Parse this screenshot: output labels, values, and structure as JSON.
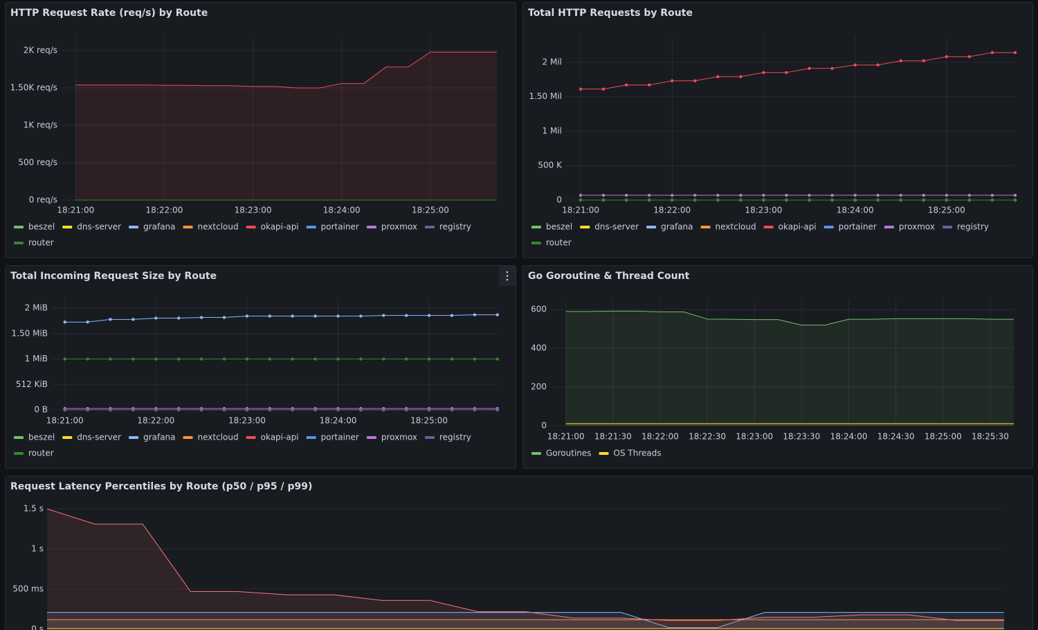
{
  "chart_data": [
    {
      "type": "line",
      "title": "HTTP Request Rate (req/s) by Route",
      "area": true,
      "points": false,
      "x": [
        "18:21:00",
        "18:21:15",
        "18:21:30",
        "18:21:45",
        "18:22:00",
        "18:22:15",
        "18:22:30",
        "18:22:45",
        "18:23:00",
        "18:23:15",
        "18:23:30",
        "18:23:45",
        "18:24:00",
        "18:24:15",
        "18:24:30",
        "18:24:45",
        "18:25:00",
        "18:25:15",
        "18:25:30",
        "18:25:45"
      ],
      "xlim": [
        "18:20:50",
        "18:25:45"
      ],
      "xticks": [
        "18:21:00",
        "18:22:00",
        "18:23:00",
        "18:24:00",
        "18:25:00"
      ],
      "ylim": [
        0,
        2195
      ],
      "yticks": [
        {
          "value": 0,
          "label": "0 req/s"
        },
        {
          "value": 500,
          "label": "500 req/s"
        },
        {
          "value": 1000,
          "label": "1K req/s"
        },
        {
          "value": 1500,
          "label": "1.50K req/s"
        },
        {
          "value": 2000,
          "label": "2K req/s"
        }
      ],
      "series": [
        {
          "name": "beszel",
          "color": "#73bf69",
          "values": [
            0,
            0,
            0,
            0,
            0,
            0,
            0,
            0,
            0,
            0,
            0,
            0,
            0,
            0,
            0,
            0,
            0,
            0,
            0,
            0
          ]
        },
        {
          "name": "dns-server",
          "color": "#fade2a",
          "values": [
            0,
            0,
            0,
            0,
            0,
            0,
            0,
            0,
            0,
            0,
            0,
            0,
            0,
            0,
            0,
            0,
            0,
            0,
            0,
            0
          ]
        },
        {
          "name": "grafana",
          "color": "#8ab8ff",
          "values": [
            0,
            0,
            0,
            0,
            0,
            0,
            0,
            0,
            0,
            0,
            0,
            0,
            0,
            0,
            0,
            0,
            0,
            0,
            0,
            0
          ]
        },
        {
          "name": "nextcloud",
          "color": "#ff9830",
          "values": [
            0,
            0,
            0,
            0,
            0,
            0,
            0,
            0,
            0,
            0,
            0,
            0,
            0,
            0,
            0,
            0,
            0,
            0,
            0,
            0
          ]
        },
        {
          "name": "okapi-api",
          "color": "#f2495c",
          "values": [
            1540,
            1540,
            1540,
            1540,
            1535,
            1535,
            1530,
            1530,
            1520,
            1520,
            1500,
            1500,
            1560,
            1560,
            1780,
            1780,
            1980,
            1980,
            1980,
            1980
          ]
        },
        {
          "name": "portainer",
          "color": "#5794f2",
          "values": [
            0,
            0,
            0,
            0,
            0,
            0,
            0,
            0,
            0,
            0,
            0,
            0,
            0,
            0,
            0,
            0,
            0,
            0,
            0,
            0
          ]
        },
        {
          "name": "proxmox",
          "color": "#b877d9",
          "values": [
            0,
            0,
            0,
            0,
            0,
            0,
            0,
            0,
            0,
            0,
            0,
            0,
            0,
            0,
            0,
            0,
            0,
            0,
            0,
            0
          ]
        },
        {
          "name": "registry",
          "color": "#705da0",
          "values": [
            0,
            0,
            0,
            0,
            0,
            0,
            0,
            0,
            0,
            0,
            0,
            0,
            0,
            0,
            0,
            0,
            0,
            0,
            0,
            0
          ]
        },
        {
          "name": "router",
          "color": "#37872d",
          "values": [
            0,
            0,
            0,
            0,
            0,
            0,
            0,
            0,
            0,
            0,
            0,
            0,
            0,
            0,
            0,
            0,
            0,
            0,
            0,
            0
          ]
        }
      ]
    },
    {
      "type": "line",
      "title": "Total HTTP Requests by Route",
      "area": false,
      "points": true,
      "x": [
        "18:21:00",
        "18:21:15",
        "18:21:30",
        "18:21:45",
        "18:22:00",
        "18:22:15",
        "18:22:30",
        "18:22:45",
        "18:23:00",
        "18:23:15",
        "18:23:30",
        "18:23:45",
        "18:24:00",
        "18:24:15",
        "18:24:30",
        "18:24:45",
        "18:25:00",
        "18:25:15",
        "18:25:30",
        "18:25:45"
      ],
      "xlim": [
        "18:20:50",
        "18:25:45"
      ],
      "xticks": [
        "18:21:00",
        "18:22:00",
        "18:23:00",
        "18:24:00",
        "18:25:00"
      ],
      "ylim": [
        0,
        2380000
      ],
      "yticks": [
        {
          "value": 0,
          "label": "0"
        },
        {
          "value": 500000,
          "label": "500 K"
        },
        {
          "value": 1000000,
          "label": "1 Mil"
        },
        {
          "value": 1500000,
          "label": "1.50 Mil"
        },
        {
          "value": 2000000,
          "label": "2 Mil"
        }
      ],
      "series": [
        {
          "name": "beszel",
          "color": "#73bf69",
          "values": [
            0,
            0,
            0,
            0,
            0,
            0,
            0,
            0,
            0,
            0,
            0,
            0,
            0,
            0,
            0,
            0,
            0,
            0,
            0,
            0
          ]
        },
        {
          "name": "dns-server",
          "color": "#fade2a",
          "values": [
            0,
            0,
            0,
            0,
            0,
            0,
            0,
            0,
            0,
            0,
            0,
            0,
            0,
            0,
            0,
            0,
            0,
            0,
            0,
            0
          ]
        },
        {
          "name": "grafana",
          "color": "#8ab8ff",
          "values": [
            0,
            0,
            0,
            0,
            0,
            0,
            0,
            0,
            0,
            0,
            0,
            0,
            0,
            0,
            0,
            0,
            0,
            0,
            0,
            0
          ]
        },
        {
          "name": "nextcloud",
          "color": "#ff9830",
          "values": [
            0,
            0,
            0,
            0,
            0,
            0,
            0,
            0,
            0,
            0,
            0,
            0,
            0,
            0,
            0,
            0,
            0,
            0,
            0,
            0
          ]
        },
        {
          "name": "okapi-api",
          "color": "#f2495c",
          "values": [
            1610000,
            1610000,
            1670000,
            1670000,
            1730000,
            1730000,
            1790000,
            1790000,
            1850000,
            1850000,
            1910000,
            1910000,
            1960000,
            1960000,
            2020000,
            2020000,
            2080000,
            2080000,
            2140000,
            2140000
          ]
        },
        {
          "name": "portainer",
          "color": "#5794f2",
          "values": [
            0,
            0,
            0,
            0,
            0,
            0,
            0,
            0,
            0,
            0,
            0,
            0,
            0,
            0,
            0,
            0,
            0,
            0,
            0,
            0
          ]
        },
        {
          "name": "proxmox",
          "color": "#b877d9",
          "values": [
            70000,
            70000,
            70000,
            70000,
            70000,
            70000,
            70000,
            70000,
            70000,
            70000,
            70000,
            70000,
            70000,
            70000,
            70000,
            70000,
            70000,
            70000,
            70000,
            70000
          ]
        },
        {
          "name": "registry",
          "color": "#705da0",
          "values": [
            0,
            0,
            0,
            0,
            0,
            0,
            0,
            0,
            0,
            0,
            0,
            0,
            0,
            0,
            0,
            0,
            0,
            0,
            0,
            0
          ]
        },
        {
          "name": "router",
          "color": "#37872d",
          "values": [
            0,
            0,
            0,
            0,
            0,
            0,
            0,
            0,
            0,
            0,
            0,
            0,
            0,
            0,
            0,
            0,
            0,
            0,
            0,
            0
          ]
        }
      ]
    },
    {
      "type": "line",
      "title": "Total Incoming Request Size by Route",
      "area": false,
      "points": true,
      "x": [
        "18:21:00",
        "18:21:15",
        "18:21:30",
        "18:21:45",
        "18:22:00",
        "18:22:15",
        "18:22:30",
        "18:22:45",
        "18:23:00",
        "18:23:15",
        "18:23:30",
        "18:23:45",
        "18:24:00",
        "18:24:15",
        "18:24:30",
        "18:24:45",
        "18:25:00",
        "18:25:15",
        "18:25:30",
        "18:25:45"
      ],
      "xlim": [
        "18:20:51",
        "18:25:46"
      ],
      "xticks": [
        "18:21:00",
        "18:22:00",
        "18:23:00",
        "18:24:00",
        "18:25:00"
      ],
      "ylim": [
        0,
        2285000
      ],
      "yticks": [
        {
          "value": 0,
          "label": "0 B"
        },
        {
          "value": 524288,
          "label": "512 KiB"
        },
        {
          "value": 1048576,
          "label": "1 MiB"
        },
        {
          "value": 1572864,
          "label": "1.50 MiB"
        },
        {
          "value": 2097152,
          "label": "2 MiB"
        }
      ],
      "series": [
        {
          "name": "beszel",
          "color": "#73bf69",
          "values": [
            0,
            0,
            0,
            0,
            0,
            0,
            0,
            0,
            0,
            0,
            0,
            0,
            0,
            0,
            0,
            0,
            0,
            0,
            0,
            0
          ]
        },
        {
          "name": "dns-server",
          "color": "#fade2a",
          "values": [
            0,
            0,
            0,
            0,
            0,
            0,
            0,
            0,
            0,
            0,
            0,
            0,
            0,
            0,
            0,
            0,
            0,
            0,
            0,
            0
          ]
        },
        {
          "name": "grafana",
          "color": "#8ab8ff",
          "values": [
            1811000,
            1811000,
            1866000,
            1866000,
            1893000,
            1893000,
            1906000,
            1906000,
            1934000,
            1934000,
            1934000,
            1934000,
            1934000,
            1934000,
            1947000,
            1947000,
            1947000,
            1947000,
            1961000,
            1961000
          ]
        },
        {
          "name": "nextcloud",
          "color": "#ff9830",
          "values": [
            0,
            0,
            0,
            0,
            0,
            0,
            0,
            0,
            0,
            0,
            0,
            0,
            0,
            0,
            0,
            0,
            0,
            0,
            0,
            0
          ]
        },
        {
          "name": "okapi-api",
          "color": "#f2495c",
          "values": [
            0,
            0,
            0,
            0,
            0,
            0,
            0,
            0,
            0,
            0,
            0,
            0,
            0,
            0,
            0,
            0,
            0,
            0,
            0,
            0
          ]
        },
        {
          "name": "portainer",
          "color": "#5794f2",
          "values": [
            0,
            0,
            0,
            0,
            0,
            0,
            0,
            0,
            0,
            0,
            0,
            0,
            0,
            0,
            0,
            0,
            0,
            0,
            0,
            0
          ]
        },
        {
          "name": "proxmox",
          "color": "#b877d9",
          "values": [
            27000,
            27000,
            27000,
            27000,
            27000,
            27000,
            27000,
            27000,
            27000,
            27000,
            27000,
            27000,
            27000,
            27000,
            27000,
            27000,
            27000,
            27000,
            27000,
            27000
          ]
        },
        {
          "name": "registry",
          "color": "#705da0",
          "values": [
            0,
            0,
            0,
            0,
            0,
            0,
            0,
            0,
            0,
            0,
            0,
            0,
            0,
            0,
            0,
            0,
            0,
            0,
            0,
            0
          ]
        },
        {
          "name": "router",
          "color": "#37872d",
          "values": [
            1048576,
            1048576,
            1048576,
            1048576,
            1048576,
            1048576,
            1048576,
            1048576,
            1048576,
            1048576,
            1048576,
            1048576,
            1048576,
            1048576,
            1048576,
            1048576,
            1048576,
            1048576,
            1048576,
            1048576
          ]
        }
      ]
    },
    {
      "type": "line",
      "title": "Go Goroutine & Thread Count",
      "area": true,
      "points": false,
      "x": [
        "18:21:00",
        "18:21:15",
        "18:21:30",
        "18:21:45",
        "18:22:00",
        "18:22:15",
        "18:22:30",
        "18:22:45",
        "18:23:00",
        "18:23:15",
        "18:23:30",
        "18:23:45",
        "18:24:00",
        "18:24:15",
        "18:24:30",
        "18:24:45",
        "18:25:00",
        "18:25:15",
        "18:25:30",
        "18:25:45"
      ],
      "xlim": [
        "18:20:50",
        "18:25:45"
      ],
      "xticks": [
        "18:21:00",
        "18:21:30",
        "18:22:00",
        "18:22:30",
        "18:23:00",
        "18:23:30",
        "18:24:00",
        "18:24:30",
        "18:25:00",
        "18:25:30"
      ],
      "ylim": [
        0,
        654
      ],
      "yticks": [
        0,
        200,
        400,
        600
      ],
      "series": [
        {
          "name": "Goroutines",
          "color": "#73bf69",
          "values": [
            590,
            590,
            592,
            592,
            588,
            588,
            551,
            550,
            548,
            548,
            520,
            520,
            550,
            550,
            553,
            553,
            553,
            553,
            550,
            550
          ]
        },
        {
          "name": "OS Threads",
          "color": "#fade2a",
          "values": [
            11,
            11,
            11,
            11,
            11,
            11,
            11,
            11,
            11,
            11,
            11,
            11,
            11,
            11,
            11,
            11,
            11,
            11,
            11,
            11
          ]
        }
      ]
    },
    {
      "type": "line",
      "title": "Request Latency Percentiles by Route (p50 / p95 / p99)",
      "area": true,
      "points": false,
      "ylim": [
        0,
        1.5
      ],
      "yticks": [
        {
          "value": 0,
          "label": "0 s"
        },
        {
          "value": 0.5,
          "label": "500 ms"
        },
        {
          "value": 1,
          "label": "1 s"
        },
        {
          "value": 1.5,
          "label": "1.5 s"
        }
      ],
      "series": [
        {
          "color": "#fade2a",
          "values": [
            0.01,
            0.01,
            0.01,
            0.01,
            0.01,
            0.01,
            0.01,
            0.01,
            0.01,
            0.01,
            0.01,
            0.01,
            0.01,
            0.01,
            0.01,
            0.01,
            0.01,
            0.01,
            0.01,
            0.01,
            0.01
          ]
        },
        {
          "color": "#ff9830",
          "values": [
            0.12,
            0.12,
            0.12,
            0.12,
            0.12,
            0.12,
            0.12,
            0.12,
            0.12,
            0.12,
            0.12,
            0.12,
            0.12,
            0.12,
            0.12,
            0.12,
            0.12,
            0.12,
            0.12,
            0.12,
            0.12
          ]
        },
        {
          "color": "#8ab8ff",
          "values": [
            0.21,
            0.21,
            0.21,
            0.21,
            0.21,
            0.21,
            0.21,
            0.21,
            0.21,
            0.21,
            0.21,
            0.21,
            0.21,
            0.02,
            0.02,
            0.21,
            0.21,
            0.21,
            0.21,
            0.21,
            0.21
          ]
        },
        {
          "color": "#ff7383",
          "values": [
            1.5,
            1.31,
            1.31,
            0.47,
            0.47,
            0.43,
            0.43,
            0.36,
            0.36,
            0.22,
            0.22,
            0.14,
            0.14,
            0.11,
            0.11,
            0.15,
            0.15,
            0.18,
            0.18,
            0.11,
            0.11
          ]
        }
      ]
    }
  ]
}
